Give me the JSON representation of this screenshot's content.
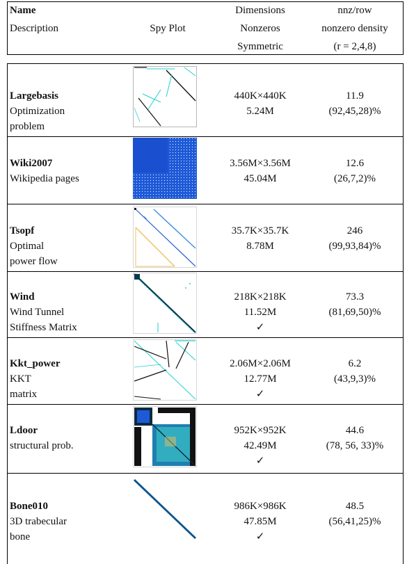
{
  "header": {
    "col1_line1": "Name",
    "col1_line2": "Description",
    "col2": "Spy Plot",
    "col3_line1": "Dimensions",
    "col3_line2": "Nonzeros",
    "col3_line3": "Symmetric",
    "col4_line1": "nnz/row",
    "col4_line2": "nonzero density",
    "col4_line3": "(r = 2,4,8)"
  },
  "rows": [
    {
      "name": "Largebasis",
      "desc": [
        "Optimization",
        "problem"
      ],
      "dims": "440K×440K",
      "nnz": "5.24M",
      "sym": "",
      "nnz_row": "11.9",
      "density": "(92,45,28)%"
    },
    {
      "name": "Wiki2007",
      "desc": [
        "Wikipedia pages"
      ],
      "dims": "3.56M×3.56M",
      "nnz": "45.04M",
      "sym": "",
      "nnz_row": "12.6",
      "density": "(26,7,2)%"
    },
    {
      "name": "Tsopf",
      "desc": [
        "Optimal",
        "power flow"
      ],
      "dims": "35.7K×35.7K",
      "nnz": "8.78M",
      "sym": "",
      "nnz_row": "246",
      "density": "(99,93,84)%"
    },
    {
      "name": "Wind",
      "desc": [
        "Wind Tunnel",
        "Stiffness Matrix"
      ],
      "dims": "218K×218K",
      "nnz": "11.52M",
      "sym": "✓",
      "nnz_row": "73.3",
      "density": "(81,69,50)%"
    },
    {
      "name": "Kkt_power",
      "desc": [
        "KKT",
        "matrix"
      ],
      "dims": "2.06M×2.06M",
      "nnz": "12.77M",
      "sym": "✓",
      "nnz_row": "6.2",
      "density": "(43,9,3)%"
    },
    {
      "name": "Ldoor",
      "desc": [
        "structural prob."
      ],
      "dims": "952K×952K",
      "nnz": "42.49M",
      "sym": "✓",
      "nnz_row": "44.6",
      "density": "(78, 56, 33)%"
    },
    {
      "name": "Bone010",
      "desc": [
        "3D trabecular",
        "bone"
      ],
      "dims": "986K×986K",
      "nnz": "47.85M",
      "sym": "✓",
      "nnz_row": "48.5",
      "density": "(56,41,25)%"
    }
  ],
  "colors": {
    "spy_blue": "#1e5ad8",
    "spy_cyan": "#22d0d0",
    "spy_black": "#111111",
    "spy_yellow": "#f0c060"
  }
}
